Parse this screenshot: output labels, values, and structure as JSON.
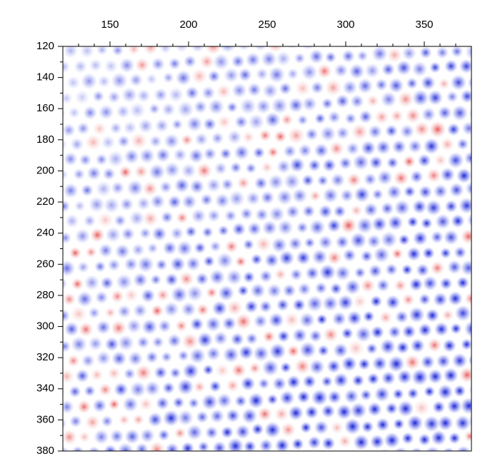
{
  "chart_data": {
    "type": "image",
    "xlim": [
      120,
      380
    ],
    "ylim": [
      120,
      380
    ],
    "xticks": [
      150,
      200,
      250,
      300,
      350
    ],
    "yticks": [
      120,
      140,
      160,
      180,
      200,
      220,
      240,
      260,
      280,
      300,
      320,
      340,
      360,
      380
    ],
    "xminorticks": [
      130,
      140,
      160,
      170,
      180,
      190,
      210,
      220,
      230,
      240,
      260,
      270,
      280,
      290,
      310,
      320,
      330,
      340,
      360,
      370
    ],
    "yminorticks": [
      130,
      150,
      170,
      190,
      210,
      230,
      250,
      270,
      290,
      310,
      330,
      350,
      370
    ],
    "y_inverted": true
  }
}
